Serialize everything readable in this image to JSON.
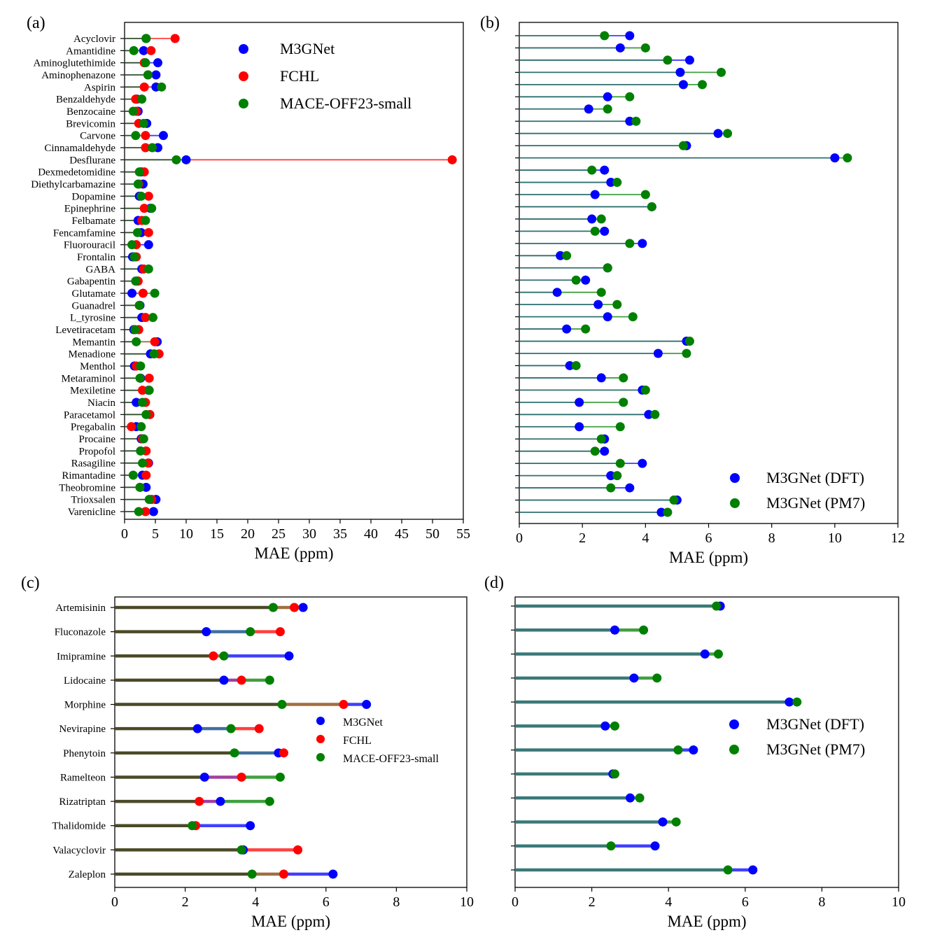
{
  "panel_labels": [
    "(a)",
    "(b)",
    "(c)",
    "(d)"
  ],
  "chart_data": [
    {
      "panel": "(a)",
      "type": "dumbbell",
      "xlabel": "MAE (ppm)",
      "xlim": [
        0,
        55
      ],
      "xticks": [
        0,
        5,
        10,
        15,
        20,
        25,
        30,
        35,
        40,
        45,
        50,
        55
      ],
      "legend": "top-right",
      "categories": [
        "Acyclovir",
        "Amantidine",
        "Aminoglutethimide",
        "Aminophenazone",
        "Aspirin",
        "Benzaldehyde",
        "Benzocaine",
        "Brevicomin",
        "Carvone",
        "Cinnamaldehyde",
        "Desflurane",
        "Dexmedetomidine",
        "Diethylcarbamazine",
        "Dopamine",
        "Epinephrine",
        "Felbamate",
        "Fencamfamine",
        "Fluorouracil",
        "Frontalin",
        "GABA",
        "Gabapentin",
        "Glutamate",
        "Guanadrel",
        "L_tyrosine",
        "Levetiracetam",
        "Memantin",
        "Menadione",
        "Menthol",
        "Metaraminol",
        "Mexiletine",
        "Niacin",
        "Paracetamol",
        "Pregabalin",
        "Procaine",
        "Propofol",
        "Rasagiline",
        "Rimantadine",
        "Theobromine",
        "Trioxsalen",
        "Varenicline"
      ],
      "series": [
        {
          "name": "M3GNet",
          "color": "#0000ff",
          "values": [
            3.5,
            3.1,
            5.4,
            5.1,
            5.1,
            2.0,
            2.2,
            3.6,
            6.3,
            5.4,
            10.0,
            2.7,
            3.0,
            2.4,
            4.2,
            2.2,
            2.7,
            3.9,
            1.3,
            2.8,
            2.0,
            1.2,
            2.5,
            2.8,
            1.5,
            5.3,
            4.2,
            1.6,
            2.6,
            3.9,
            1.9,
            4.1,
            1.9,
            2.7,
            2.6,
            3.9,
            2.9,
            3.5,
            5.1,
            4.7
          ]
        },
        {
          "name": "FCHL",
          "color": "#ff0000",
          "values": [
            8.2,
            4.3,
            3.2,
            3.8,
            3.2,
            1.8,
            1.9,
            2.3,
            3.4,
            3.4,
            53.2,
            3.2,
            2.3,
            3.9,
            3.2,
            2.8,
            3.9,
            1.9,
            1.9,
            3.1,
            2.2,
            3.0,
            2.4,
            3.4,
            2.3,
            4.9,
            5.6,
            1.9,
            4.0,
            2.9,
            3.4,
            4.1,
            1.1,
            2.9,
            3.5,
            3.8,
            3.5,
            2.5,
            4.4,
            3.4
          ]
        },
        {
          "name": "MACE-OFF23-small",
          "color": "#008000",
          "values": [
            3.5,
            1.5,
            3.4,
            3.8,
            6.0,
            2.8,
            1.4,
            3.1,
            1.8,
            4.5,
            8.4,
            2.4,
            2.2,
            2.7,
            4.4,
            3.4,
            2.1,
            1.2,
            1.6,
            3.9,
            1.8,
            4.9,
            2.4,
            4.6,
            1.7,
            1.9,
            4.8,
            2.6,
            2.5,
            4.0,
            2.9,
            3.5,
            2.7,
            3.1,
            2.6,
            2.9,
            1.4,
            2.5,
            4.0,
            2.3
          ]
        }
      ]
    },
    {
      "panel": "(b)",
      "type": "dumbbell",
      "xlabel": "MAE (ppm)",
      "xlim": [
        0,
        12
      ],
      "xticks": [
        0,
        2,
        4,
        6,
        8,
        10,
        12
      ],
      "legend": "lower-right",
      "categories": [
        "Acyclovir",
        "Amantidine",
        "Aminoglutethimide",
        "Aminophenazone",
        "Aspirin",
        "Benzaldehyde",
        "Benzocaine",
        "Brevicomin",
        "Carvone",
        "Cinnamaldehyde",
        "Desflurane",
        "Dexmedetomidine",
        "Diethylcarbamazine",
        "Dopamine",
        "Epinephrine",
        "Felbamate",
        "Fencamfamine",
        "Fluorouracil",
        "Frontalin",
        "GABA",
        "Gabapentin",
        "Glutamate",
        "Guanadrel",
        "L_tyrosine",
        "Levetiracetam",
        "Memantin",
        "Menadione",
        "Menthol",
        "Metaraminol",
        "Mexiletine",
        "Niacin",
        "Paracetamol",
        "Pregabalin",
        "Procaine",
        "Propofol",
        "Rasagiline",
        "Rimantadine",
        "Theobromine",
        "Trioxsalen",
        "Varenicline"
      ],
      "series": [
        {
          "name": "M3GNet (DFT)",
          "color": "#0000ff",
          "values": [
            3.5,
            3.2,
            5.4,
            5.1,
            5.2,
            2.8,
            2.2,
            3.5,
            6.3,
            5.3,
            10.0,
            2.7,
            2.9,
            2.4,
            4.2,
            2.3,
            2.7,
            3.9,
            1.3,
            2.8,
            2.1,
            1.2,
            2.5,
            2.8,
            1.5,
            5.3,
            4.4,
            1.6,
            2.6,
            3.9,
            1.9,
            4.1,
            1.9,
            2.7,
            2.7,
            3.9,
            2.9,
            3.5,
            5.0,
            4.5
          ]
        },
        {
          "name": "M3GNet (PM7)",
          "color": "#008000",
          "values": [
            2.7,
            4.0,
            4.7,
            6.4,
            5.8,
            3.5,
            2.8,
            3.7,
            6.6,
            5.2,
            10.4,
            2.3,
            3.1,
            4.0,
            4.2,
            2.6,
            2.4,
            3.5,
            1.5,
            2.8,
            1.8,
            2.6,
            3.1,
            3.6,
            2.1,
            5.4,
            5.3,
            1.8,
            3.3,
            4.0,
            3.3,
            4.3,
            3.2,
            2.6,
            2.4,
            3.2,
            3.1,
            2.9,
            4.9,
            4.7
          ]
        }
      ]
    },
    {
      "panel": "(c)",
      "type": "dumbbell",
      "xlabel": "MAE (ppm)",
      "xlim": [
        0,
        10
      ],
      "xticks": [
        0,
        2,
        4,
        6,
        8,
        10
      ],
      "legend": "center-right",
      "categories": [
        "Artemisinin",
        "Fluconazole",
        "Imipramine",
        "Lidocaine",
        "Morphine",
        "Nevirapine",
        "Phenytoin",
        "Ramelteon",
        "Rizatriptan",
        "Thalidomide",
        "Valacyclovir",
        "Zaleplon"
      ],
      "series": [
        {
          "name": "M3GNet",
          "color": "#0000ff",
          "values": [
            5.35,
            2.6,
            4.95,
            3.1,
            7.15,
            2.35,
            4.65,
            2.55,
            3.0,
            3.85,
            3.65,
            6.2
          ]
        },
        {
          "name": "FCHL",
          "color": "#ff0000",
          "values": [
            5.1,
            4.7,
            2.8,
            3.6,
            6.5,
            4.1,
            4.8,
            3.6,
            2.4,
            2.3,
            5.2,
            4.8
          ]
        },
        {
          "name": "MACE-OFF23-small",
          "color": "#008000",
          "values": [
            4.5,
            3.85,
            3.1,
            4.4,
            4.75,
            3.3,
            3.4,
            4.7,
            4.4,
            2.2,
            3.6,
            3.9
          ]
        }
      ]
    },
    {
      "panel": "(d)",
      "type": "dumbbell",
      "xlabel": "MAE (ppm)",
      "xlim": [
        0,
        10
      ],
      "xticks": [
        0,
        2,
        4,
        6,
        8,
        10
      ],
      "legend": "center-right",
      "categories": [
        "Artemisinin",
        "Fluconazole",
        "Imipramine",
        "Lidocaine",
        "Morphine",
        "Nevirapine",
        "Phenytoin",
        "Ramelteon",
        "Rizatriptan",
        "Thalidomide",
        "Valacyclovir",
        "Zaleplon"
      ],
      "series": [
        {
          "name": "M3GNet (DFT)",
          "color": "#0000ff",
          "values": [
            5.35,
            2.6,
            4.95,
            3.1,
            7.15,
            2.35,
            4.65,
            2.55,
            3.0,
            3.85,
            3.65,
            6.2
          ]
        },
        {
          "name": "M3GNet (PM7)",
          "color": "#008000",
          "values": [
            5.25,
            3.35,
            5.3,
            3.7,
            7.35,
            2.6,
            4.25,
            2.6,
            3.25,
            4.2,
            2.5,
            5.55
          ]
        }
      ]
    }
  ]
}
